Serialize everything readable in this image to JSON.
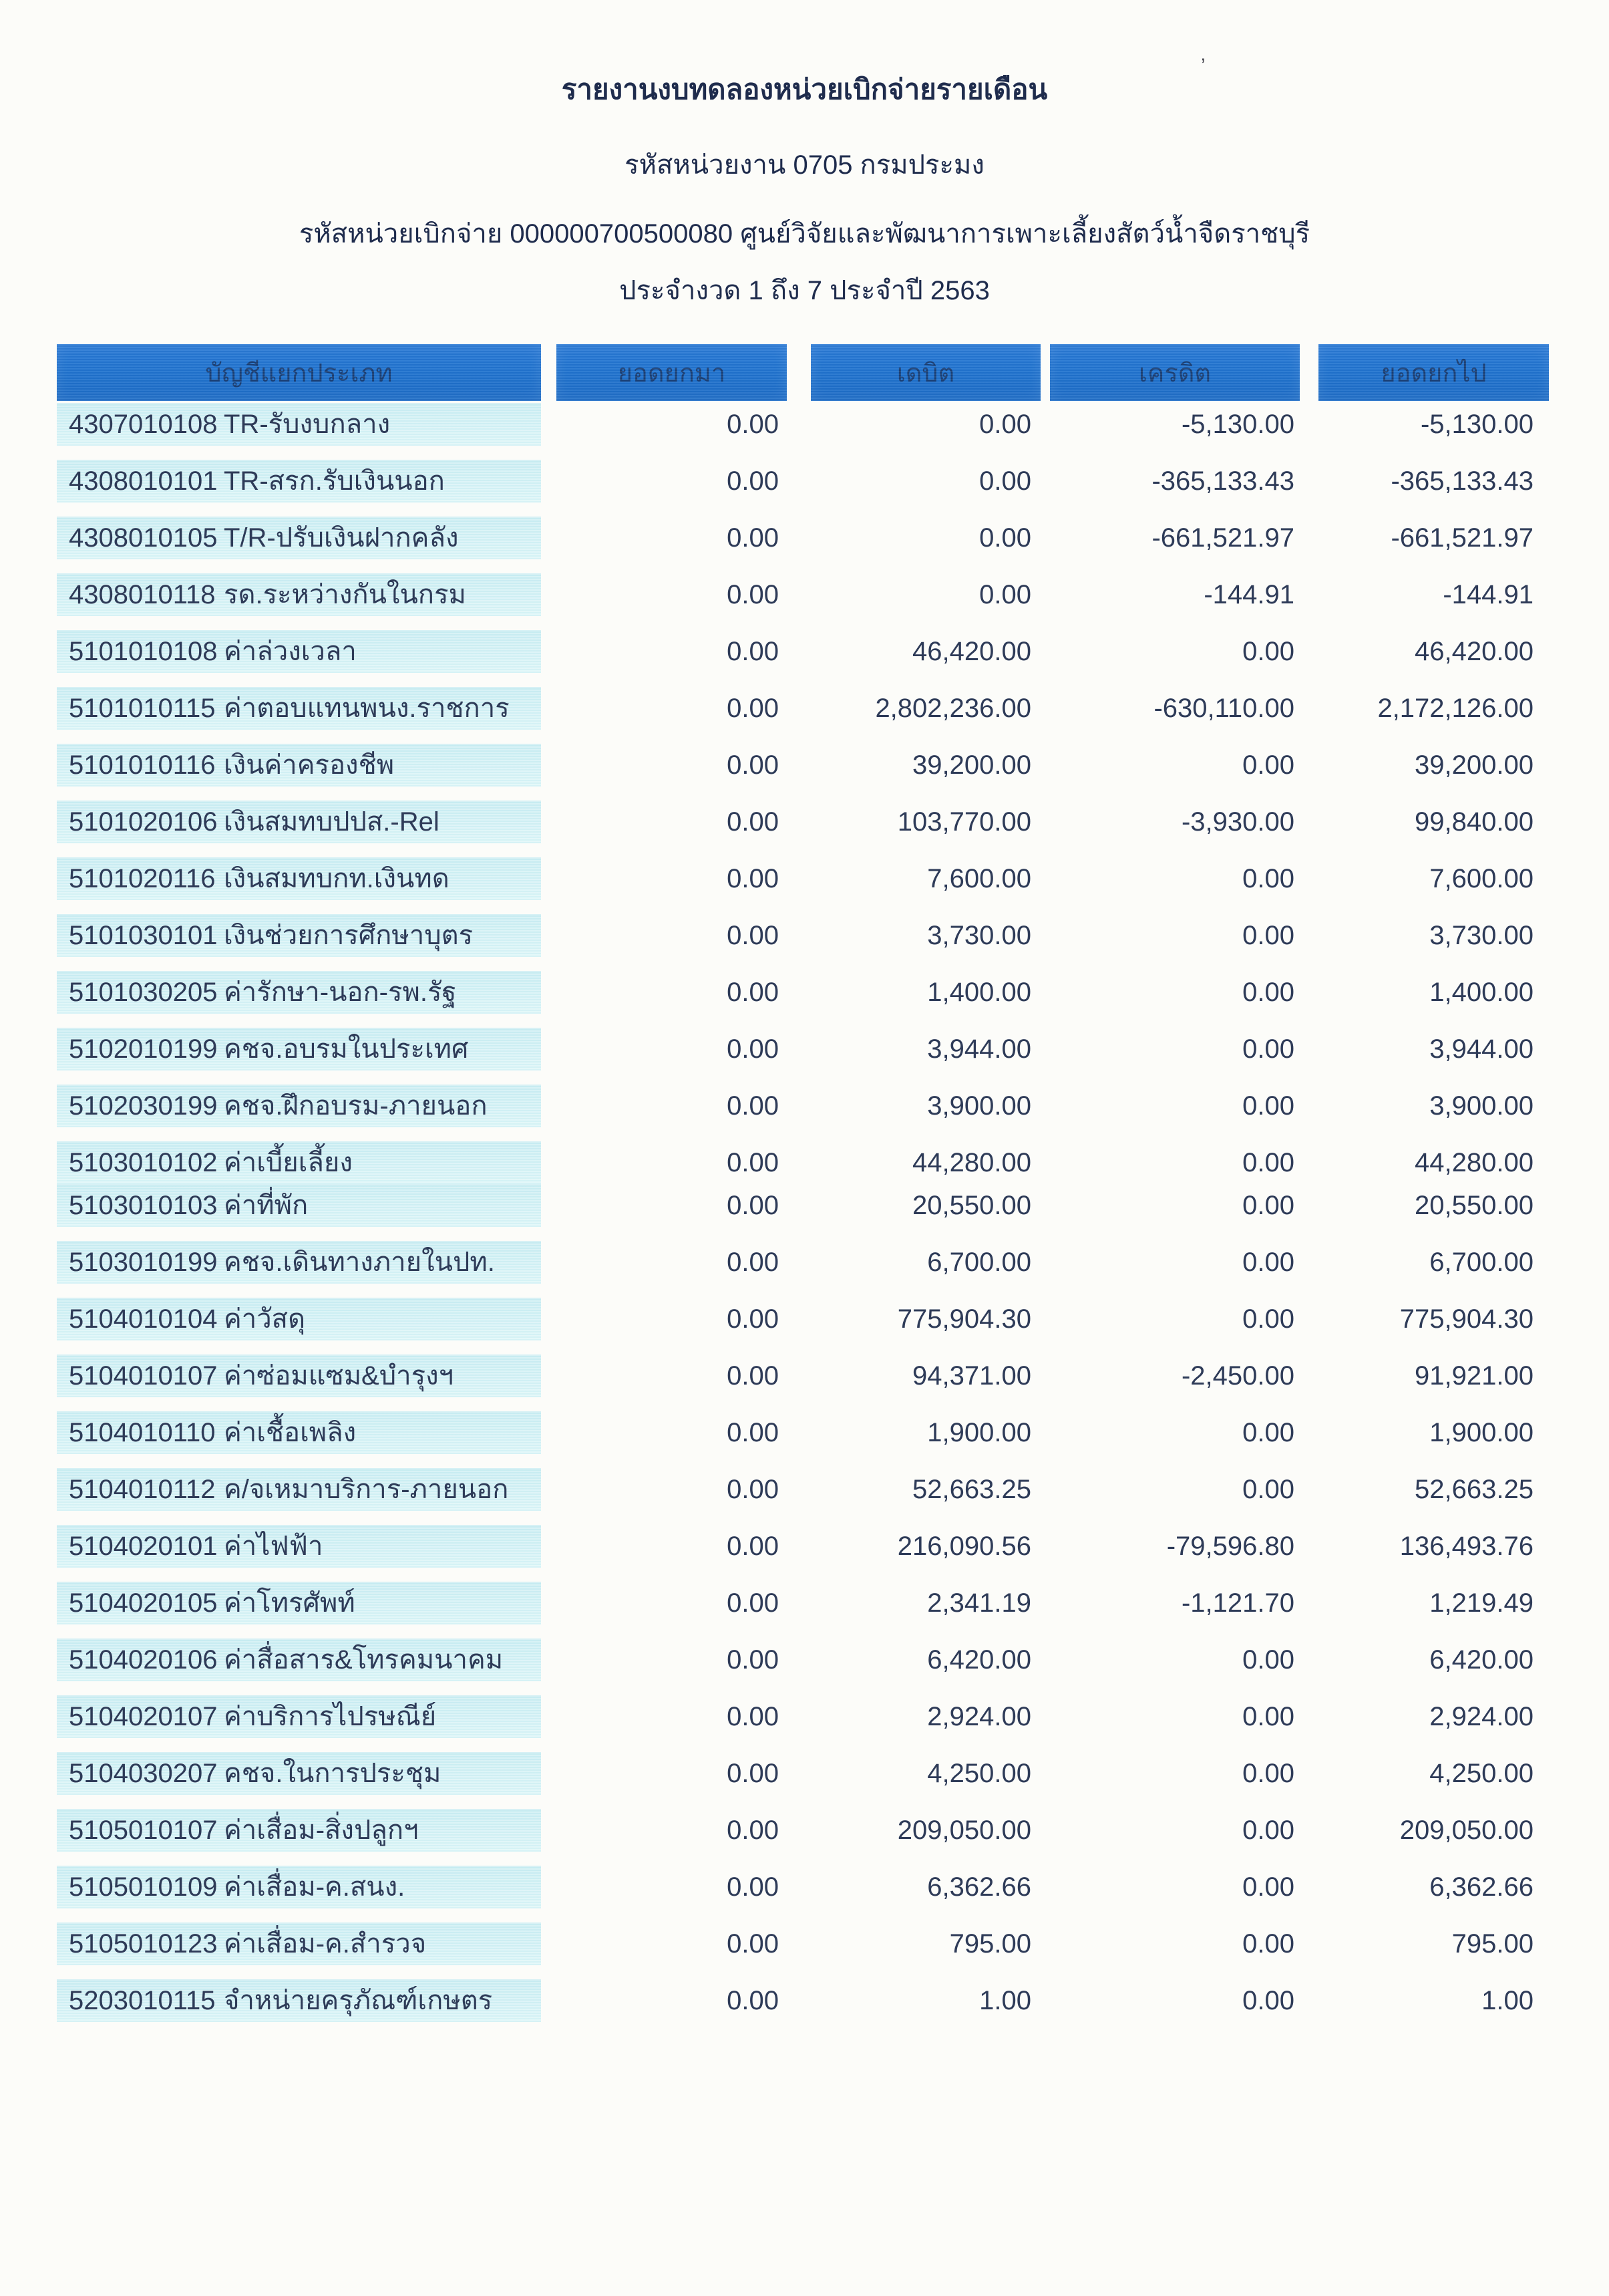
{
  "report": {
    "title": "รายงานงบทดลองหน่วยเบิกจ่ายรายเดือน",
    "agency_line": "รหัสหน่วยงาน 0705 กรมประมง",
    "disbursement_unit_line": "รหัสหน่วยเบิกจ่าย 000000700500080 ศูนย์วิจัยและพัฒนาการเพาะเลี้ยงสัตว์น้ำจืดราชบุรี",
    "period_line": "ประจำงวด 1 ถึง 7 ประจำปี 2563",
    "scan_mark": "’"
  },
  "table": {
    "columns": [
      "บัญชีแยกประเภท",
      "ยอดยกมา",
      "เดบิต",
      "เครดิต",
      "ยอดยกไป"
    ],
    "rows": [
      {
        "code": "4307010108",
        "name": "TR-รับงบกลาง",
        "carry": "0.00",
        "debit": "0.00",
        "credit": "-5,130.00",
        "balance": "-5,130.00"
      },
      {
        "code": "4308010101",
        "name": "TR-สรก.รับเงินนอก",
        "carry": "0.00",
        "debit": "0.00",
        "credit": "-365,133.43",
        "balance": "-365,133.43"
      },
      {
        "code": "4308010105",
        "name": "T/R-ปรับเงินฝากคลัง",
        "carry": "0.00",
        "debit": "0.00",
        "credit": "-661,521.97",
        "balance": "-661,521.97"
      },
      {
        "code": "4308010118",
        "name": "รด.ระหว่างกันในกรม",
        "carry": "0.00",
        "debit": "0.00",
        "credit": "-144.91",
        "balance": "-144.91"
      },
      {
        "code": "5101010108",
        "name": "ค่าล่วงเวลา",
        "carry": "0.00",
        "debit": "46,420.00",
        "credit": "0.00",
        "balance": "46,420.00"
      },
      {
        "code": "5101010115",
        "name": "ค่าตอบแทนพนง.ราชการ",
        "carry": "0.00",
        "debit": "2,802,236.00",
        "credit": "-630,110.00",
        "balance": "2,172,126.00"
      },
      {
        "code": "5101010116",
        "name": "เงินค่าครองชีพ",
        "carry": "0.00",
        "debit": "39,200.00",
        "credit": "0.00",
        "balance": "39,200.00"
      },
      {
        "code": "5101020106",
        "name": "เงินสมทบปปส.-Rel",
        "carry": "0.00",
        "debit": "103,770.00",
        "credit": "-3,930.00",
        "balance": "99,840.00"
      },
      {
        "code": "5101020116",
        "name": "เงินสมทบกท.เงินทด",
        "carry": "0.00",
        "debit": "7,600.00",
        "credit": "0.00",
        "balance": "7,600.00"
      },
      {
        "code": "5101030101",
        "name": "เงินช่วยการศึกษาบุตร",
        "carry": "0.00",
        "debit": "3,730.00",
        "credit": "0.00",
        "balance": "3,730.00"
      },
      {
        "code": "5101030205",
        "name": "ค่ารักษา-นอก-รพ.รัฐ",
        "carry": "0.00",
        "debit": "1,400.00",
        "credit": "0.00",
        "balance": "1,400.00"
      },
      {
        "code": "5102010199",
        "name": "คชจ.อบรมในประเทศ",
        "carry": "0.00",
        "debit": "3,944.00",
        "credit": "0.00",
        "balance": "3,944.00"
      },
      {
        "code": "5102030199",
        "name": "คชจ.ฝึกอบรม-ภายนอก",
        "carry": "0.00",
        "debit": "3,900.00",
        "credit": "0.00",
        "balance": "3,900.00"
      },
      {
        "code": "5103010102",
        "name": "ค่าเบี้ยเลี้ยง",
        "carry": "0.00",
        "debit": "44,280.00",
        "credit": "0.00",
        "balance": "44,280.00"
      },
      {
        "code": "5103010103",
        "name": "ค่าที่พัก",
        "carry": "0.00",
        "debit": "20,550.00",
        "credit": "0.00",
        "balance": "20,550.00",
        "tight": true
      },
      {
        "code": "5103010199",
        "name": "คชจ.เดินทางภายในปท.",
        "carry": "0.00",
        "debit": "6,700.00",
        "credit": "0.00",
        "balance": "6,700.00"
      },
      {
        "code": "5104010104",
        "name": "ค่าวัสดุ",
        "carry": "0.00",
        "debit": "775,904.30",
        "credit": "0.00",
        "balance": "775,904.30"
      },
      {
        "code": "5104010107",
        "name": "ค่าซ่อมแซม&บำรุงฯ",
        "carry": "0.00",
        "debit": "94,371.00",
        "credit": "-2,450.00",
        "balance": "91,921.00"
      },
      {
        "code": "5104010110",
        "name": "ค่าเชื้อเพลิง",
        "carry": "0.00",
        "debit": "1,900.00",
        "credit": "0.00",
        "balance": "1,900.00"
      },
      {
        "code": "5104010112",
        "name": "ค/จเหมาบริการ-ภายนอก",
        "carry": "0.00",
        "debit": "52,663.25",
        "credit": "0.00",
        "balance": "52,663.25"
      },
      {
        "code": "5104020101",
        "name": "ค่าไฟฟ้า",
        "carry": "0.00",
        "debit": "216,090.56",
        "credit": "-79,596.80",
        "balance": "136,493.76"
      },
      {
        "code": "5104020105",
        "name": "ค่าโทรศัพท์",
        "carry": "0.00",
        "debit": "2,341.19",
        "credit": "-1,121.70",
        "balance": "1,219.49"
      },
      {
        "code": "5104020106",
        "name": "ค่าสื่อสาร&โทรคมนาคม",
        "carry": "0.00",
        "debit": "6,420.00",
        "credit": "0.00",
        "balance": "6,420.00"
      },
      {
        "code": "5104020107",
        "name": "ค่าบริการไปรษณีย์",
        "carry": "0.00",
        "debit": "2,924.00",
        "credit": "0.00",
        "balance": "2,924.00"
      },
      {
        "code": "5104030207",
        "name": "คชจ.ในการประชุม",
        "carry": "0.00",
        "debit": "4,250.00",
        "credit": "0.00",
        "balance": "4,250.00"
      },
      {
        "code": "5105010107",
        "name": "ค่าเสื่อม-สิ่งปลูกฯ",
        "carry": "0.00",
        "debit": "209,050.00",
        "credit": "0.00",
        "balance": "209,050.00"
      },
      {
        "code": "5105010109",
        "name": "ค่าเสื่อม-ค.สนง.",
        "carry": "0.00",
        "debit": "6,362.66",
        "credit": "0.00",
        "balance": "6,362.66"
      },
      {
        "code": "5105010123",
        "name": "ค่าเสื่อม-ค.สำรวจ",
        "carry": "0.00",
        "debit": "795.00",
        "credit": "0.00",
        "balance": "795.00"
      },
      {
        "code": "5203010115",
        "name": "จำหน่ายครุภัณฑ์เกษตร",
        "carry": "0.00",
        "debit": "1.00",
        "credit": "0.00",
        "balance": "1.00"
      }
    ]
  },
  "colors": {
    "page_bg": "#fcfcf9",
    "header_bg": "#2174d0",
    "row_bg_top": "#cdeef3",
    "row_bg_bottom": "#def6f8",
    "text": "#2e3b58",
    "title_text": "#1f2c4d",
    "header_text": "#1a3e73"
  }
}
